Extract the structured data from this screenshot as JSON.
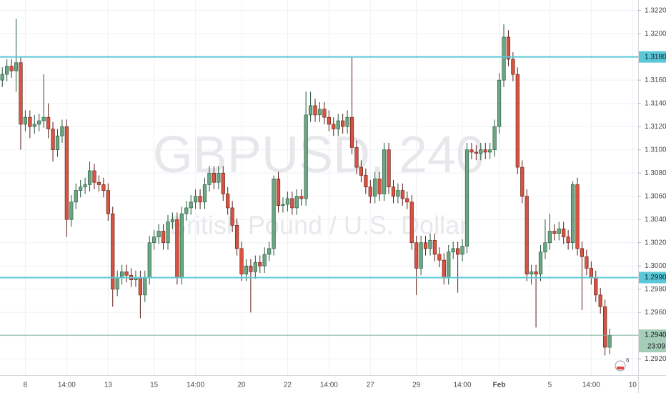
{
  "chart_data": {
    "type": "candlestick",
    "watermark": {
      "symbol": "GBPUSD, 240",
      "description": "British Pound / U.S. Dollar"
    },
    "colors": {
      "up": "#6ba583",
      "down": "#d75442",
      "up_border": "#225437",
      "down_border": "#5b1a13",
      "wick": "#737375",
      "level": "#5ac8d8"
    },
    "open": [
      1.316,
      1.3165,
      1.3172,
      1.3168,
      1.3175,
      1.3122,
      1.3128,
      1.312,
      1.3122,
      1.3125,
      1.3128,
      1.3118,
      1.31,
      1.3112,
      1.312,
      1.304,
      1.3055,
      1.3065,
      1.3068,
      1.307,
      1.3082,
      1.3072,
      1.307,
      1.3065,
      1.3045,
      1.298,
      1.299,
      1.2995,
      1.2992,
      1.2988,
      1.299,
      1.2975,
      1.299,
      1.302,
      1.3025,
      1.303,
      1.302,
      1.3038,
      1.304,
      1.299,
      1.3045,
      1.305,
      1.3055,
      1.306,
      1.3055,
      1.307,
      1.308,
      1.3072,
      1.308,
      1.3062,
      1.305,
      1.3035,
      1.3015,
      1.2993,
      1.3,
      1.2995,
      1.3003,
      1.3,
      1.301,
      1.3015,
      1.3075,
      1.3052,
      1.3053,
      1.3058,
      1.305,
      1.306,
      1.3058,
      1.313,
      1.3138,
      1.313,
      1.3135,
      1.3128,
      1.3122,
      1.3118,
      1.3125,
      1.312,
      1.3128,
      1.3102,
      1.3085,
      1.3078,
      1.3068,
      1.306,
      1.3075,
      1.3062,
      1.31,
      1.3068,
      1.306,
      1.3065,
      1.3058,
      1.3055,
      1.302,
      1.2998,
      1.302,
      1.3015,
      1.3022,
      1.301,
      1.3005,
      1.299,
      1.3012,
      1.3015,
      1.301,
      1.3017,
      1.31,
      1.3098,
      1.3097,
      1.31,
      1.3098,
      1.31,
      1.312,
      1.316,
      1.3197,
      1.3178,
      1.3165,
      1.3085,
      1.306,
      1.2993,
      1.2995,
      1.2993,
      1.3012,
      1.302,
      1.303,
      1.3028,
      1.3032,
      1.3025,
      1.302,
      1.307,
      1.3015,
      1.3008,
      1.2998,
      1.299,
      1.2975,
      1.2965,
      1.293
    ],
    "high": [
      1.3171,
      1.3178,
      1.3178,
      1.3213,
      1.318,
      1.3134,
      1.3134,
      1.313,
      1.3131,
      1.3165,
      1.314,
      1.3124,
      1.3118,
      1.3126,
      1.3126,
      1.3061,
      1.3071,
      1.3074,
      1.3076,
      1.309,
      1.3088,
      1.3078,
      1.3076,
      1.3071,
      1.3051,
      1.2996,
      1.3001,
      1.3001,
      1.2998,
      1.2996,
      1.2996,
      1.2996,
      1.3026,
      1.3031,
      1.3036,
      1.3036,
      1.3044,
      1.3046,
      1.3046,
      1.3051,
      1.3056,
      1.3061,
      1.3066,
      1.3066,
      1.3076,
      1.3086,
      1.3086,
      1.3086,
      1.3086,
      1.3068,
      1.3056,
      1.3041,
      1.3021,
      1.3006,
      1.3006,
      1.3009,
      1.3009,
      1.3016,
      1.3021,
      1.3078,
      1.3081,
      1.3059,
      1.3064,
      1.3064,
      1.3066,
      1.3066,
      1.315,
      1.315,
      1.3144,
      1.3141,
      1.3141,
      1.3134,
      1.3128,
      1.3131,
      1.3131,
      1.3134,
      1.318,
      1.3108,
      1.3091,
      1.3084,
      1.3074,
      1.3081,
      1.3081,
      1.3106,
      1.3106,
      1.3074,
      1.3071,
      1.3071,
      1.3064,
      1.3061,
      1.3026,
      1.3026,
      1.3026,
      1.3028,
      1.3028,
      1.3016,
      1.3011,
      1.3018,
      1.3021,
      1.3021,
      1.3023,
      1.3106,
      1.3106,
      1.3104,
      1.3106,
      1.3106,
      1.3106,
      1.3126,
      1.3166,
      1.3208,
      1.3203,
      1.3184,
      1.3171,
      1.3091,
      1.3066,
      1.3001,
      1.3001,
      1.3018,
      1.304,
      1.3045,
      1.3036,
      1.3038,
      1.3038,
      1.3031,
      1.3073,
      1.3076,
      1.3021,
      1.3014,
      1.3004,
      1.2996,
      1.2981,
      1.2971,
      1.2946
    ],
    "low": [
      1.3154,
      1.3159,
      1.3162,
      1.315,
      1.31,
      1.3116,
      1.311,
      1.3114,
      1.3116,
      1.3119,
      1.311,
      1.309,
      1.3094,
      1.3106,
      1.3025,
      1.3034,
      1.3049,
      1.3059,
      1.3062,
      1.3064,
      1.3066,
      1.3064,
      1.3059,
      1.3039,
      1.2965,
      1.2974,
      1.2984,
      1.2986,
      1.2982,
      1.2982,
      1.2955,
      1.2969,
      1.2984,
      1.3014,
      1.3019,
      1.3014,
      1.3014,
      1.3032,
      1.2984,
      1.2984,
      1.3039,
      1.3044,
      1.3049,
      1.3049,
      1.3049,
      1.3064,
      1.3066,
      1.3066,
      1.3056,
      1.3044,
      1.3029,
      1.3009,
      1.2987,
      1.2987,
      1.296,
      1.2989,
      1.2994,
      1.2994,
      1.3004,
      1.3009,
      1.3046,
      1.3046,
      1.3047,
      1.3044,
      1.3044,
      1.3052,
      1.3052,
      1.3124,
      1.3124,
      1.3124,
      1.3122,
      1.3116,
      1.3112,
      1.3112,
      1.3114,
      1.3114,
      1.3096,
      1.3079,
      1.3072,
      1.3062,
      1.3054,
      1.3054,
      1.3056,
      1.3056,
      1.3062,
      1.3054,
      1.3054,
      1.3052,
      1.3049,
      1.3014,
      1.2975,
      1.2992,
      1.3009,
      1.3009,
      1.3004,
      1.2999,
      1.2984,
      1.2984,
      1.3006,
      1.2977,
      1.3004,
      1.3011,
      1.3092,
      1.3091,
      1.3091,
      1.3092,
      1.3092,
      1.3094,
      1.3114,
      1.3154,
      1.3172,
      1.3159,
      1.3079,
      1.3054,
      1.2987,
      1.2984,
      1.2947,
      1.2987,
      1.3006,
      1.3014,
      1.3022,
      1.3022,
      1.3019,
      1.3014,
      1.3014,
      1.3009,
      1.2962,
      1.2992,
      1.2984,
      1.2969,
      1.2959,
      1.2923,
      1.2924
    ],
    "close": [
      1.3165,
      1.3172,
      1.3168,
      1.3175,
      1.3122,
      1.3128,
      1.312,
      1.3122,
      1.3125,
      1.3128,
      1.3118,
      1.31,
      1.3112,
      1.312,
      1.304,
      1.3055,
      1.3065,
      1.3068,
      1.307,
      1.3082,
      1.3072,
      1.307,
      1.3065,
      1.3045,
      1.298,
      1.299,
      1.2995,
      1.2992,
      1.2988,
      1.299,
      1.2975,
      1.299,
      1.302,
      1.3025,
      1.303,
      1.302,
      1.3038,
      1.304,
      1.299,
      1.3045,
      1.305,
      1.3055,
      1.306,
      1.3055,
      1.307,
      1.308,
      1.3072,
      1.308,
      1.3062,
      1.305,
      1.3035,
      1.3015,
      1.2993,
      1.3,
      1.2995,
      1.3003,
      1.3,
      1.301,
      1.3015,
      1.3075,
      1.3052,
      1.3053,
      1.3058,
      1.305,
      1.306,
      1.3058,
      1.313,
      1.3138,
      1.313,
      1.3135,
      1.3128,
      1.3122,
      1.3118,
      1.3125,
      1.312,
      1.3128,
      1.3102,
      1.3085,
      1.3078,
      1.3068,
      1.306,
      1.3075,
      1.3062,
      1.31,
      1.3068,
      1.306,
      1.3065,
      1.3058,
      1.3055,
      1.302,
      1.2998,
      1.302,
      1.3015,
      1.3022,
      1.301,
      1.3005,
      1.299,
      1.3012,
      1.3015,
      1.301,
      1.3017,
      1.31,
      1.3098,
      1.3097,
      1.31,
      1.3098,
      1.31,
      1.312,
      1.316,
      1.3197,
      1.3178,
      1.3165,
      1.3085,
      1.306,
      1.2993,
      1.2995,
      1.2993,
      1.3012,
      1.302,
      1.303,
      1.3028,
      1.3032,
      1.3025,
      1.302,
      1.307,
      1.3015,
      1.3008,
      1.2998,
      1.299,
      1.2975,
      1.2965,
      1.293,
      1.294
    ],
    "xlim": [
      -0.5,
      138.2
    ],
    "xticks": [
      {
        "value": 5,
        "label": "8"
      },
      {
        "value": 14,
        "label": "14:00"
      },
      {
        "value": 23,
        "label": "13"
      },
      {
        "value": 33,
        "label": "15"
      },
      {
        "value": 42,
        "label": "14:00"
      },
      {
        "value": 52,
        "label": "20"
      },
      {
        "value": 62,
        "label": "22"
      },
      {
        "value": 71,
        "label": "14:00"
      },
      {
        "value": 80,
        "label": "27"
      },
      {
        "value": 90,
        "label": "29"
      },
      {
        "value": 100,
        "label": "14:00"
      },
      {
        "value": 108,
        "label": "Feb"
      },
      {
        "value": 119,
        "label": "5"
      },
      {
        "value": 128,
        "label": "14:00"
      },
      {
        "value": 137,
        "label": "10"
      }
    ],
    "ylim": [
      1.2906,
      1.3229
    ],
    "yticks": [
      {
        "value": 1.292,
        "label": "1.29200"
      },
      {
        "value": 1.294,
        "label": "1.29400"
      },
      {
        "value": 1.296,
        "label": "1.29600"
      },
      {
        "value": 1.298,
        "label": "1.29800"
      },
      {
        "value": 1.3,
        "label": "1.30000"
      },
      {
        "value": 1.302,
        "label": "1.30200"
      },
      {
        "value": 1.304,
        "label": "1.30400"
      },
      {
        "value": 1.306,
        "label": "1.30600"
      },
      {
        "value": 1.308,
        "label": "1.30800"
      },
      {
        "value": 1.31,
        "label": "1.31000"
      },
      {
        "value": 1.312,
        "label": "1.31200"
      },
      {
        "value": 1.314,
        "label": "1.31400"
      },
      {
        "value": 1.316,
        "label": "1.31600"
      },
      {
        "value": 1.318,
        "label": "1.31800"
      },
      {
        "value": 1.32,
        "label": "1.32000"
      },
      {
        "value": 1.322,
        "label": "1.32200"
      }
    ],
    "grid": true,
    "levels": [
      {
        "value": 1.318,
        "label": "1.31800"
      },
      {
        "value": 1.299,
        "label": "1.29900"
      }
    ],
    "last_price": {
      "value": 1.29404,
      "label": "1.29404"
    },
    "countdown": "23:09",
    "badge": "6"
  }
}
